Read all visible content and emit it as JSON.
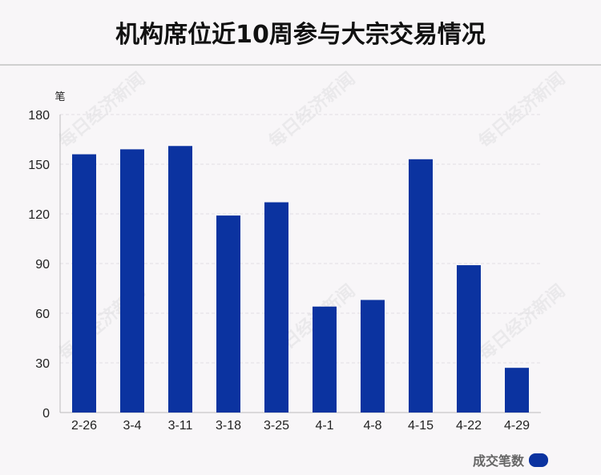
{
  "title": "机构席位近10周参与大宗交易情况",
  "watermark_text": "每日经济新闻",
  "colors": {
    "bar": "#0b33a0",
    "axis": "#bbbbbb",
    "grid": "#e2dfe3",
    "text": "#222222"
  },
  "chart_data": {
    "type": "bar",
    "title": "机构席位近10周参与大宗交易情况",
    "xlabel": "",
    "ylabel": "笔",
    "unit": "笔",
    "categories": [
      "2-26",
      "3-4",
      "3-11",
      "3-18",
      "3-25",
      "4-1",
      "4-8",
      "4-15",
      "4-22",
      "4-29"
    ],
    "series": [
      {
        "name": "成交笔数",
        "values": [
          156,
          159,
          161,
          119,
          127,
          64,
          68,
          153,
          89,
          27
        ]
      }
    ],
    "ylim": [
      0,
      180
    ],
    "yticks": [
      0,
      30,
      60,
      90,
      120,
      150,
      180
    ],
    "grid": true,
    "legend": "bottom-right"
  }
}
